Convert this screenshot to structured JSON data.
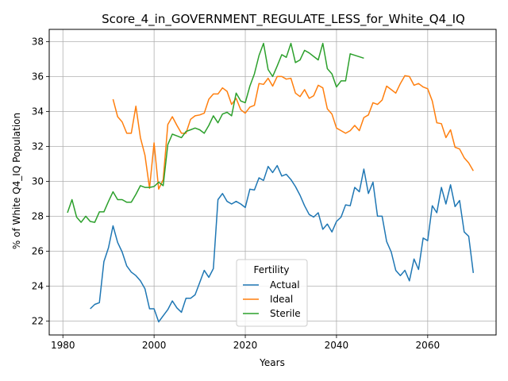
{
  "chart_data": {
    "type": "line",
    "title": "Score_4_in_GOVERNMENT_REGULATE_LESS_for_White_Q4_IQ",
    "xlabel": "Years",
    "ylabel": "% of White Q4_IQ Population",
    "xlim": [
      1977,
      2075
    ],
    "ylim": [
      21.2,
      38.7
    ],
    "xticks": [
      1980,
      2000,
      2020,
      2040,
      2060
    ],
    "yticks": [
      22,
      24,
      26,
      28,
      30,
      32,
      34,
      36,
      38
    ],
    "grid": true,
    "legend": {
      "title": "Fertility",
      "position": "lower-center"
    },
    "series": [
      {
        "name": "Actual",
        "color": "#1f77b4",
        "x": [
          1986,
          1987,
          1988,
          1989,
          1990,
          1991,
          1992,
          1993,
          1994,
          1995,
          1996,
          1997,
          1998,
          1999,
          2000,
          2001,
          2002,
          2003,
          2004,
          2005,
          2006,
          2007,
          2008,
          2009,
          2010,
          2011,
          2012,
          2013,
          2014,
          2015,
          2016,
          2017,
          2018,
          2019,
          2020,
          2021,
          2022,
          2023,
          2024,
          2025,
          2026,
          2027,
          2028,
          2029,
          2030,
          2031,
          2032,
          2033,
          2034,
          2035,
          2036,
          2037,
          2038,
          2039,
          2040,
          2041,
          2042,
          2043,
          2044,
          2045,
          2046,
          2047,
          2048,
          2049,
          2050,
          2051,
          2052,
          2053,
          2054,
          2055,
          2056,
          2057,
          2058,
          2059,
          2060,
          2061,
          2062,
          2063,
          2064,
          2065,
          2066,
          2067,
          2068,
          2069,
          2070
        ],
        "y": [
          22.7,
          22.95,
          23.05,
          25.4,
          26.2,
          27.45,
          26.5,
          25.95,
          25.15,
          24.8,
          24.6,
          24.3,
          23.85,
          22.7,
          22.7,
          21.95,
          22.3,
          22.65,
          23.15,
          22.75,
          22.5,
          23.3,
          23.3,
          23.5,
          24.2,
          24.9,
          24.5,
          25.0,
          28.95,
          29.3,
          28.85,
          28.7,
          28.85,
          28.7,
          28.5,
          29.55,
          29.5,
          30.2,
          30.05,
          30.85,
          30.5,
          30.9,
          30.3,
          30.4,
          30.1,
          29.7,
          29.2,
          28.6,
          28.1,
          27.95,
          28.2,
          27.25,
          27.55,
          27.1,
          27.7,
          27.95,
          28.65,
          28.6,
          29.65,
          29.4,
          30.7,
          29.3,
          29.95,
          28.0,
          28.0,
          26.55,
          25.95,
          24.9,
          24.6,
          24.9,
          24.3,
          25.55,
          24.95,
          26.75,
          26.6,
          28.6,
          28.2,
          29.65,
          28.7,
          29.8,
          28.55,
          28.9,
          27.1,
          26.85,
          24.75
        ]
      },
      {
        "name": "Ideal",
        "color": "#ff7f0e",
        "x": [
          1991,
          1992,
          1993,
          1994,
          1995,
          1996,
          1997,
          1998,
          1999,
          2000,
          2001,
          2002,
          2003,
          2004,
          2005,
          2006,
          2007,
          2008,
          2009,
          2010,
          2011,
          2012,
          2013,
          2014,
          2015,
          2016,
          2017,
          2018,
          2019,
          2020,
          2021,
          2022,
          2023,
          2024,
          2025,
          2026,
          2027,
          2028,
          2029,
          2030,
          2031,
          2032,
          2033,
          2034,
          2035,
          2036,
          2037,
          2038,
          2039,
          2040,
          2041,
          2042,
          2043,
          2044,
          2045,
          2046,
          2047,
          2048,
          2049,
          2050,
          2051,
          2052,
          2053,
          2054,
          2055,
          2056,
          2057,
          2058,
          2059,
          2060,
          2061,
          2062,
          2063,
          2064,
          2065,
          2066,
          2067,
          2068,
          2069,
          2070
        ],
        "y": [
          34.7,
          33.7,
          33.4,
          32.75,
          32.75,
          34.3,
          32.5,
          31.5,
          29.6,
          32.2,
          29.55,
          30.1,
          33.25,
          33.7,
          33.2,
          32.75,
          32.75,
          33.55,
          33.75,
          33.8,
          33.9,
          34.7,
          35.0,
          35.0,
          35.35,
          35.15,
          34.4,
          34.75,
          34.1,
          33.9,
          34.25,
          34.35,
          35.6,
          35.55,
          35.9,
          35.45,
          36.0,
          36.0,
          35.85,
          35.9,
          35.05,
          34.85,
          35.25,
          34.75,
          34.9,
          35.5,
          35.35,
          34.15,
          33.85,
          33.05,
          32.9,
          32.75,
          32.9,
          33.2,
          32.9,
          33.65,
          33.8,
          34.5,
          34.4,
          34.65,
          35.45,
          35.25,
          35.05,
          35.6,
          36.05,
          36.0,
          35.5,
          35.6,
          35.4,
          35.3,
          34.6,
          33.35,
          33.3,
          32.5,
          32.95,
          31.95,
          31.85,
          31.35,
          31.05,
          30.6
        ]
      },
      {
        "name": "Sterile",
        "color": "#2ca02c",
        "x": [
          1981,
          1982,
          1983,
          1984,
          1985,
          1986,
          1987,
          1988,
          1989,
          1990,
          1991,
          1992,
          1993,
          1994,
          1995,
          1996,
          1997,
          1998,
          1999,
          2000,
          2001,
          2002,
          2003,
          2004,
          2005,
          2006,
          2007,
          2008,
          2009,
          2010,
          2011,
          2012,
          2013,
          2014,
          2015,
          2016,
          2017,
          2018,
          2019,
          2020,
          2021,
          2022,
          2023,
          2024,
          2025,
          2026,
          2027,
          2028,
          2029,
          2030,
          2031,
          2032,
          2033,
          2034,
          2035,
          2036,
          2037,
          2038,
          2039,
          2040,
          2041,
          2042,
          2043,
          2046
        ],
        "y": [
          28.2,
          28.95,
          27.95,
          27.65,
          28.0,
          27.7,
          27.65,
          28.25,
          28.25,
          28.85,
          29.4,
          28.95,
          28.95,
          28.8,
          28.8,
          29.25,
          29.75,
          29.65,
          29.65,
          29.7,
          29.95,
          29.75,
          32.1,
          32.7,
          32.6,
          32.5,
          32.85,
          32.95,
          33.05,
          32.95,
          32.75,
          33.2,
          33.75,
          33.35,
          33.85,
          33.95,
          33.75,
          35.05,
          34.6,
          34.5,
          35.45,
          36.15,
          37.2,
          37.9,
          36.4,
          36.0,
          36.6,
          37.25,
          37.1,
          37.9,
          36.8,
          36.95,
          37.5,
          37.35,
          37.15,
          36.95,
          37.9,
          36.45,
          36.15,
          35.4,
          35.75,
          35.75,
          37.3,
          37.05
        ]
      }
    ]
  }
}
